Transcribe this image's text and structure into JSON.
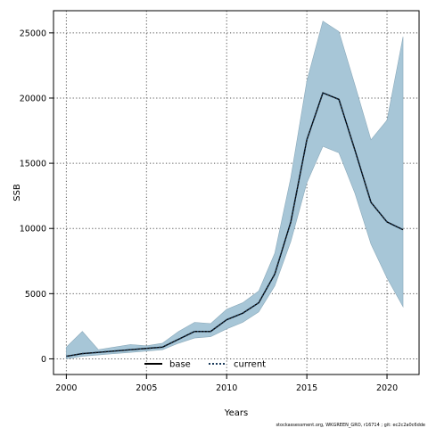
{
  "chart_data": {
    "type": "line",
    "xlabel": "Years",
    "ylabel": "SSB",
    "xlim": [
      1999.2,
      2022.0
    ],
    "ylim": [
      -1200,
      26700
    ],
    "x_ticks": [
      2000,
      2005,
      2010,
      2015,
      2020
    ],
    "y_ticks": [
      0,
      5000,
      10000,
      15000,
      20000,
      25000
    ],
    "grid": true,
    "legend_position": "bottom-center",
    "x": [
      2000,
      2001,
      2002,
      2003,
      2004,
      2005,
      2006,
      2007,
      2008,
      2009,
      2010,
      2011,
      2012,
      2013,
      2014,
      2015,
      2016,
      2017,
      2018,
      2019,
      2020,
      2021
    ],
    "series": [
      {
        "name": "base",
        "style": "solid",
        "color": "#000000",
        "values": [
          200,
          400,
          500,
          600,
          700,
          800,
          900,
          1500,
          2100,
          2100,
          3000,
          3500,
          4300,
          6500,
          10500,
          16800,
          20400,
          19900,
          16000,
          12000,
          10500,
          9900
        ]
      },
      {
        "name": "current",
        "style": "dotted",
        "color": "#1a3a5a",
        "values": [
          200,
          400,
          500,
          600,
          700,
          800,
          900,
          1500,
          2100,
          2100,
          3000,
          3500,
          4300,
          6500,
          10500,
          16800,
          20400,
          19900,
          16000,
          12000,
          10500,
          9900
        ]
      }
    ],
    "confidence_band": {
      "color": "#a7c6d7",
      "upper": [
        900,
        2100,
        700,
        900,
        1100,
        1000,
        1200,
        2100,
        2800,
        2700,
        3800,
        4300,
        5200,
        8100,
        13900,
        21300,
        25900,
        25100,
        21000,
        16800,
        18300,
        24700
      ],
      "lower": [
        0,
        200,
        300,
        400,
        500,
        600,
        700,
        1200,
        1600,
        1700,
        2300,
        2800,
        3600,
        5600,
        9000,
        13500,
        16300,
        15800,
        12700,
        8800,
        6200,
        4000
      ]
    },
    "footer": "stockassessment.org, WKGREEN_GRO, r16714 ; git: ec2c2a0c6dde"
  }
}
